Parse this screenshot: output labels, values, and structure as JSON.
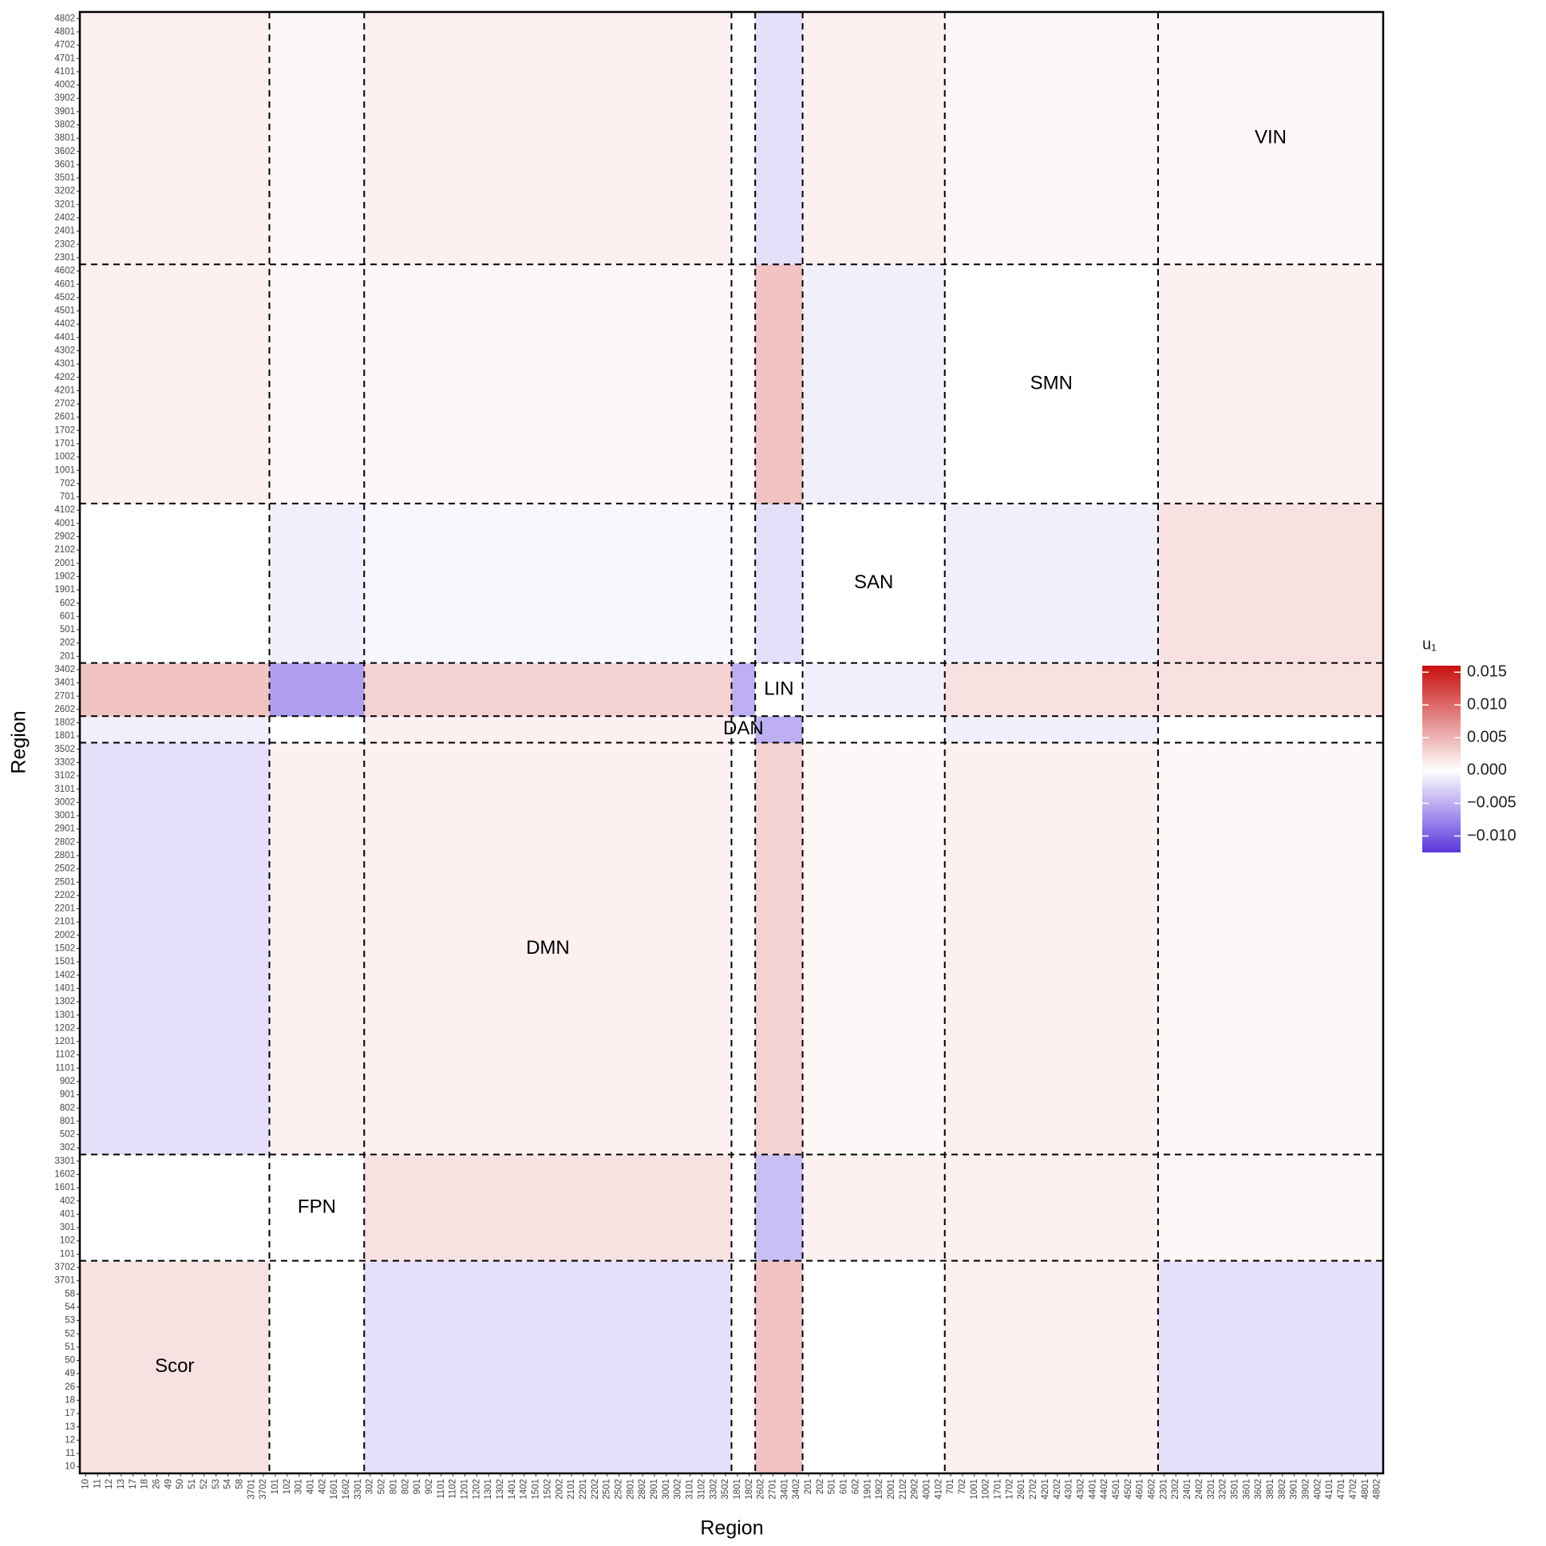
{
  "chart_data": {
    "type": "heatmap",
    "x_label": "Region",
    "y_label": "Region",
    "legend_title": "u₁",
    "networks": [
      {
        "name": "Scor",
        "regions": [
          "10",
          "11",
          "12",
          "13",
          "17",
          "18",
          "26",
          "49",
          "50",
          "51",
          "52",
          "53",
          "54",
          "58",
          "3701",
          "3702"
        ]
      },
      {
        "name": "FPN",
        "regions": [
          "101",
          "102",
          "301",
          "401",
          "402",
          "1601",
          "1602",
          "3301"
        ]
      },
      {
        "name": "DMN",
        "regions": [
          "302",
          "502",
          "801",
          "802",
          "901",
          "902",
          "1101",
          "1102",
          "1201",
          "1202",
          "1301",
          "1302",
          "1401",
          "1402",
          "1501",
          "1502",
          "2002",
          "2101",
          "2201",
          "2202",
          "2501",
          "2502",
          "2801",
          "2802",
          "2901",
          "3001",
          "3002",
          "3101",
          "3102",
          "3302",
          "3502"
        ]
      },
      {
        "name": "DAN",
        "regions": [
          "1801",
          "1802"
        ]
      },
      {
        "name": "LIN",
        "regions": [
          "2602",
          "2701",
          "3401",
          "3402"
        ]
      },
      {
        "name": "SAN",
        "regions": [
          "201",
          "202",
          "501",
          "601",
          "602",
          "1901",
          "1902",
          "2001",
          "2102",
          "2902",
          "4001",
          "4102"
        ]
      },
      {
        "name": "SMN",
        "regions": [
          "701",
          "702",
          "1001",
          "1002",
          "1701",
          "1702",
          "2601",
          "2702",
          "4201",
          "4202",
          "4301",
          "4302",
          "4401",
          "4402",
          "4501",
          "4502",
          "4601",
          "4602"
        ]
      },
      {
        "name": "VIN",
        "regions": [
          "2301",
          "2302",
          "2401",
          "2402",
          "3201",
          "3202",
          "3501",
          "3601",
          "3602",
          "3801",
          "3802",
          "3901",
          "3902",
          "4002",
          "4101",
          "4701",
          "4702",
          "4801",
          "4802"
        ]
      }
    ],
    "z": [
      [
        0.002,
        0,
        -0.002,
        0,
        0.004,
        0,
        0.001,
        -0.002
      ],
      [
        0,
        0,
        0.002,
        0,
        -0.004,
        0.001,
        0.001,
        0.0005
      ],
      [
        -0.002,
        0.001,
        0.001,
        0,
        0.003,
        0.0005,
        0.001,
        0.0005
      ],
      [
        -0.001,
        0,
        0.001,
        0,
        -0.005,
        0,
        -0.001,
        0
      ],
      [
        0.004,
        -0.006,
        0.003,
        -0.005,
        0,
        -0.001,
        0.002,
        0.002
      ],
      [
        0,
        -0.001,
        -0.0005,
        0,
        -0.002,
        0,
        -0.001,
        0.002
      ],
      [
        0.001,
        0.0005,
        0.0005,
        0,
        0.004,
        -0.001,
        0,
        0.001
      ],
      [
        0.001,
        0.0005,
        0.001,
        0,
        -0.002,
        0.001,
        0.0005,
        0.0005
      ]
    ],
    "zlim": [
      -0.0125,
      0.016
    ],
    "zticks": [
      {
        "value": -0.01,
        "label": "−0.010"
      },
      {
        "value": -0.005,
        "label": "−0.005"
      },
      {
        "value": 0,
        "label": "0.000"
      },
      {
        "value": 0.005,
        "label": "0.005"
      },
      {
        "value": 0.01,
        "label": "0.010"
      },
      {
        "value": 0.015,
        "label": "0.015"
      }
    ],
    "colors": {
      "low": "#5a36dc",
      "mid": "#ffffff",
      "high": "#c8100e"
    }
  }
}
